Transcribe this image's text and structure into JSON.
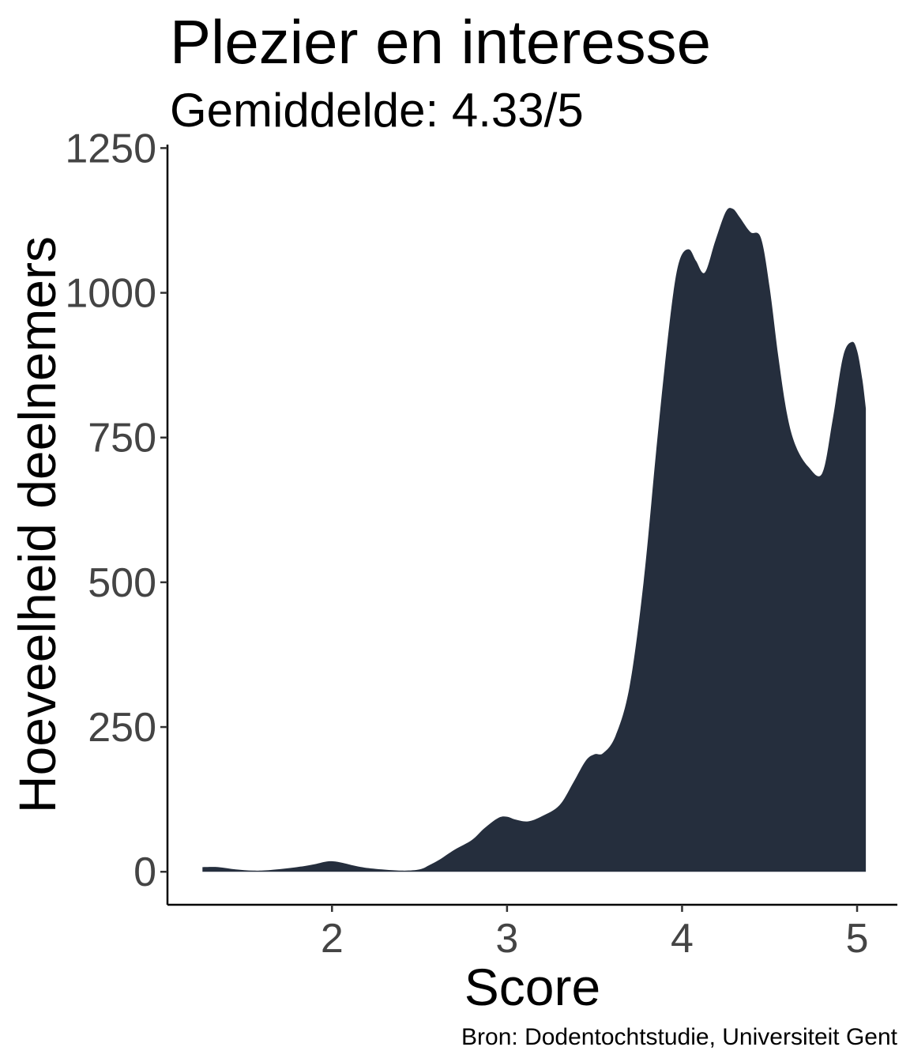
{
  "chart_data": {
    "type": "area",
    "title": "Plezier en interesse",
    "subtitle": "Gemiddelde: 4.33/5",
    "xlabel": "Score",
    "ylabel": "Hoeveelheid deelnemers",
    "caption": "Bron: Dodentochtstudie, Universiteit Gent",
    "xlim": [
      1.06,
      5.23
    ],
    "ylim": [
      -57,
      1256
    ],
    "xticks": [
      "2",
      "3",
      "4",
      "5"
    ],
    "yticks": [
      "0",
      "250",
      "500",
      "750",
      "1000",
      "1250"
    ],
    "grid": false,
    "legend": "none",
    "fill_color": "#252e3d",
    "series": [
      {
        "x": [
          1.26,
          1.35,
          1.45,
          1.55,
          1.65,
          1.8,
          1.9,
          1.98,
          2.05,
          2.15,
          2.25,
          2.4,
          2.5,
          2.56,
          2.62,
          2.7,
          2.8,
          2.87,
          2.95,
          3.0,
          3.05,
          3.12,
          3.2,
          3.3,
          3.38,
          3.45,
          3.5,
          3.55,
          3.62,
          3.7,
          3.78,
          3.85,
          3.9,
          3.95,
          3.99,
          4.04,
          4.08,
          4.13,
          4.19,
          4.25,
          4.29,
          4.33,
          4.39,
          4.45,
          4.5,
          4.55,
          4.6,
          4.65,
          4.72,
          4.8,
          4.86,
          4.92,
          4.97,
          5.0,
          5.03,
          5.05
        ],
        "y": [
          8,
          8,
          4,
          2,
          3,
          8,
          13,
          18,
          16,
          9,
          5,
          2,
          4,
          12,
          22,
          38,
          55,
          75,
          93,
          95,
          90,
          87,
          96,
          115,
          155,
          192,
          203,
          205,
          235,
          320,
          500,
          720,
          870,
          1000,
          1060,
          1075,
          1055,
          1035,
          1090,
          1140,
          1145,
          1130,
          1105,
          1095,
          1010,
          890,
          790,
          735,
          700,
          688,
          780,
          890,
          915,
          900,
          850,
          800
        ]
      }
    ]
  }
}
